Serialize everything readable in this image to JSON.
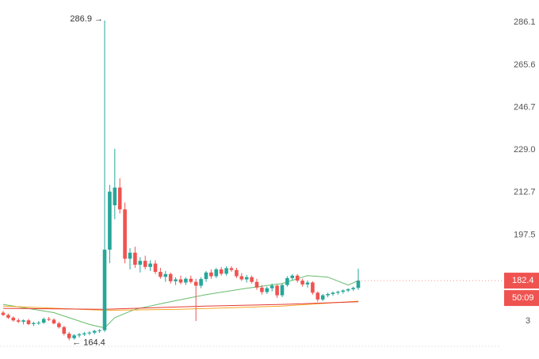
{
  "chart_data": {
    "type": "candlestick",
    "log_scale": true,
    "ylim": [
      162,
      297.4
    ],
    "yticks": [
      286.1,
      265.6,
      246.7,
      {
        "value": 229,
        "label": "229.0"
      },
      212.7,
      197.5
    ],
    "up_color": "#26a69a",
    "down_color": "#ef5350",
    "open": [
      172.5,
      171.8,
      171.0,
      170.2,
      169.8,
      170.2,
      169.1,
      169.4,
      169.5,
      170.6,
      170.4,
      169.3,
      168.2,
      166.3,
      165.0,
      165.8,
      166.1,
      166.4,
      166.6,
      167.1,
      167.3,
      192.5,
      208,
      214.5,
      206.5,
      189.5,
      191.5,
      187.5,
      188.8,
      186.8,
      187.9,
      185.2,
      183.6,
      184.5,
      182.2,
      182.8,
      181.8,
      183,
      182,
      180.8,
      182.9,
      185,
      183.8,
      186,
      184.6,
      186.4,
      185.8,
      183.8,
      182.8,
      183.5,
      182,
      180.2,
      178.8,
      180,
      180.8,
      177.8,
      181,
      183.2,
      184,
      182.4,
      181.2,
      181.8,
      178.6,
      176.5,
      177.8,
      178.2,
      178.6,
      178.9,
      179.3,
      179.7,
      180.1
    ],
    "high": [
      173,
      172.2,
      171.4,
      170.8,
      170.5,
      170.6,
      169.8,
      170.0,
      171.0,
      171.2,
      170.8,
      169.8,
      168.6,
      166.8,
      166.2,
      166.5,
      166.8,
      167.0,
      167.4,
      167.6,
      286.9,
      215.5,
      229.5,
      218,
      209,
      193,
      193.5,
      190,
      190.5,
      189,
      189,
      186.5,
      185.5,
      185,
      183.5,
      184,
      183.5,
      184,
      183,
      183.5,
      185.5,
      186,
      186.5,
      186.8,
      187,
      187,
      186.5,
      184.8,
      184.2,
      184,
      183,
      181,
      180.5,
      181.5,
      181.2,
      181.5,
      183.8,
      184.5,
      184.5,
      183,
      182.5,
      182.2,
      179,
      178.2,
      178.6,
      179,
      179.2,
      179.6,
      180,
      180.5,
      186.2
    ],
    "low": [
      171.5,
      170.6,
      169.8,
      169.4,
      169.0,
      168.8,
      168.5,
      168.9,
      169.2,
      170.0,
      169.0,
      167.8,
      165.8,
      164.4,
      164.6,
      165.2,
      165.6,
      165.9,
      166.1,
      166.5,
      166.8,
      188,
      203,
      205,
      188,
      186,
      186.5,
      185,
      186,
      185.5,
      184.5,
      183,
      182,
      181.5,
      181,
      181.2,
      181,
      181.5,
      170,
      180,
      182,
      183,
      183.2,
      184,
      184,
      185.2,
      183.2,
      182.3,
      181.8,
      181.5,
      179.5,
      178,
      178.2,
      179,
      177,
      177.2,
      180.5,
      182.5,
      181.8,
      180.5,
      180.2,
      178,
      175.8,
      176,
      177.2,
      177.6,
      178,
      178.3,
      178.8,
      179.2,
      179.5
    ],
    "close": [
      171.8,
      171.0,
      170.2,
      169.8,
      170.2,
      169.1,
      169.4,
      169.5,
      170.6,
      170.4,
      169.3,
      168.2,
      166.3,
      165.0,
      165.8,
      166.1,
      166.4,
      166.6,
      167.1,
      167.3,
      192.5,
      213,
      214.5,
      206.5,
      189.5,
      191.5,
      187.5,
      188.8,
      186.8,
      187.9,
      185.2,
      183.6,
      184.5,
      182.2,
      182.8,
      181.8,
      183,
      182,
      180.8,
      182.9,
      185,
      183.8,
      186,
      184.6,
      186.4,
      185.8,
      183.8,
      182.8,
      183.5,
      182,
      180.2,
      178.8,
      180,
      180.8,
      177.8,
      181,
      183.2,
      184,
      182.4,
      181.2,
      181.8,
      178.6,
      176.5,
      177.8,
      178.2,
      178.6,
      178.9,
      179.3,
      179.7,
      180.1,
      182.4
    ],
    "series": [
      {
        "color": "#66bb6a",
        "x": [
          0,
          10,
          17,
          20,
          22,
          26,
          32,
          40,
          48,
          55,
          60,
          64,
          68,
          70
        ],
        "values": [
          175,
          172.5,
          169,
          168,
          171,
          173.5,
          175.5,
          178,
          180,
          181.5,
          184,
          183.5,
          181,
          182.4
        ]
      },
      {
        "color": "#f5a623",
        "x": [
          0,
          20,
          35,
          55,
          70
        ],
        "values": [
          174.5,
          173.2,
          173.5,
          174.5,
          176
        ]
      },
      {
        "color": "#e53935",
        "x": [
          0,
          20,
          40,
          55,
          70
        ],
        "values": [
          173.8,
          173.5,
          174.5,
          175,
          175.8
        ]
      }
    ],
    "high_annotation": "286.9 →",
    "low_annotation": "← 164.4",
    "last_price": 182.4,
    "countdown": "50:09",
    "partial_tick": "3"
  }
}
